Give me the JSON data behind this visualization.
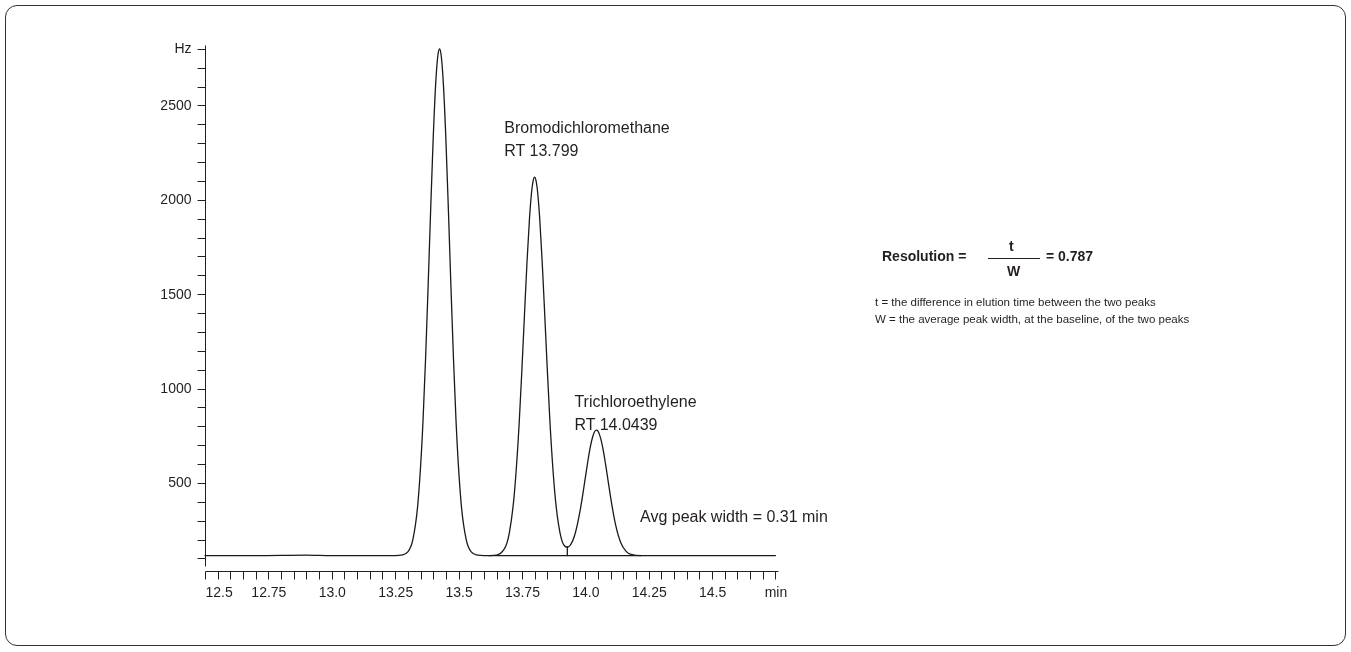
{
  "chart_data": {
    "type": "line",
    "series": [
      {
        "color": "#1a1a1a",
        "x": [
          12.5,
          12.7,
          12.9,
          13.0,
          13.2,
          13.25,
          13.28,
          13.3,
          13.32,
          13.34,
          13.36,
          13.37,
          13.38,
          13.39,
          13.4,
          13.41,
          13.415,
          13.42,
          13.425,
          13.43,
          13.435,
          13.44,
          13.45,
          13.46,
          13.47,
          13.48,
          13.49,
          13.51,
          13.53,
          13.55,
          13.57,
          13.6,
          13.65,
          13.68,
          13.7,
          13.72,
          13.74,
          13.75,
          13.76,
          13.77,
          13.78,
          13.79,
          13.795,
          13.8,
          13.805,
          13.81,
          13.82,
          13.83,
          13.84,
          13.85,
          13.86,
          13.88,
          13.9,
          13.92,
          13.93,
          13.94,
          13.96,
          13.98,
          14.0,
          14.01,
          14.02,
          14.03,
          14.044,
          14.05,
          14.06,
          14.07,
          14.08,
          14.09,
          14.1,
          14.12,
          14.14,
          14.16,
          14.18,
          14.22,
          14.5,
          14.75
        ],
        "values": [
          115,
          115,
          118,
          115,
          115,
          115,
          119,
          135,
          201,
          396,
          832,
          1159,
          1541,
          1946,
          2324,
          2618,
          2717,
          2779,
          2800,
          2779,
          2717,
          2618,
          2324,
          1946,
          1541,
          1159,
          832,
          396,
          201,
          135,
          119,
          115,
          118,
          149,
          233,
          442,
          837,
          1103,
          1390,
          1669,
          1905,
          2064,
          2106,
          2120,
          2106,
          2064,
          1905,
          1669,
          1390,
          1103,
          837,
          443,
          237,
          164,
          159,
          169,
          232,
          357,
          527,
          615,
          692,
          749,
          780,
          774,
          739,
          678,
          598,
          510,
          422,
          275,
          183,
          139,
          122,
          115,
          115,
          115
        ]
      },
      {
        "color": "#1a1a1a",
        "x": [
          13.62,
          14.22
        ],
        "values": [
          115,
          115
        ]
      },
      {
        "color": "#1a1a1a",
        "x": [
          13.929,
          13.929
        ],
        "values": [
          115,
          162
        ]
      }
    ],
    "xlim": [
      12.5,
      14.76
    ],
    "ylim": [
      60,
      2820
    ],
    "xticks": [
      12.5,
      {
        "value": 12.55,
        "label": null
      },
      {
        "value": 12.6,
        "label": null
      },
      {
        "value": 12.65,
        "label": null
      },
      {
        "value": 12.7,
        "label": null
      },
      12.75,
      {
        "value": 12.8,
        "label": null
      },
      {
        "value": 12.85,
        "label": null
      },
      {
        "value": 12.9,
        "label": null
      },
      {
        "value": 12.95,
        "label": null
      },
      {
        "value": 13,
        "label": "13.0"
      },
      {
        "value": 13.05,
        "label": null
      },
      {
        "value": 13.1,
        "label": null
      },
      {
        "value": 13.15,
        "label": null
      },
      {
        "value": 13.2,
        "label": null
      },
      13.25,
      {
        "value": 13.3,
        "label": null
      },
      {
        "value": 13.35,
        "label": null
      },
      {
        "value": 13.4,
        "label": null
      },
      {
        "value": 13.45,
        "label": null
      },
      13.5,
      {
        "value": 13.55,
        "label": null
      },
      {
        "value": 13.6,
        "label": null
      },
      {
        "value": 13.65,
        "label": null
      },
      {
        "value": 13.7,
        "label": null
      },
      13.75,
      {
        "value": 13.8,
        "label": null
      },
      {
        "value": 13.85,
        "label": null
      },
      {
        "value": 13.9,
        "label": null
      },
      {
        "value": 13.95,
        "label": null
      },
      {
        "value": 14,
        "label": "14.0"
      },
      {
        "value": 14.05,
        "label": null
      },
      {
        "value": 14.1,
        "label": null
      },
      {
        "value": 14.15,
        "label": null
      },
      {
        "value": 14.2,
        "label": null
      },
      14.25,
      {
        "value": 14.3,
        "label": null
      },
      {
        "value": 14.35,
        "label": null
      },
      {
        "value": 14.4,
        "label": null
      },
      {
        "value": 14.45,
        "label": null
      },
      14.5,
      {
        "value": 14.55,
        "label": null
      },
      {
        "value": 14.6,
        "label": null
      },
      {
        "value": 14.65,
        "label": null
      },
      {
        "value": 14.7,
        "label": null
      },
      {
        "value": 14.75,
        "label": "min"
      }
    ],
    "yticks": [
      {
        "value": 100,
        "label": null
      },
      {
        "value": 200,
        "label": null
      },
      {
        "value": 300,
        "label": null
      },
      {
        "value": 400,
        "label": null
      },
      500,
      {
        "value": 600,
        "label": null
      },
      {
        "value": 700,
        "label": null
      },
      {
        "value": 800,
        "label": null
      },
      {
        "value": 900,
        "label": null
      },
      1000,
      {
        "value": 1100,
        "label": null
      },
      {
        "value": 1200,
        "label": null
      },
      {
        "value": 1300,
        "label": null
      },
      {
        "value": 1400,
        "label": null
      },
      1500,
      {
        "value": 1600,
        "label": null
      },
      {
        "value": 1700,
        "label": null
      },
      {
        "value": 1800,
        "label": null
      },
      {
        "value": 1900,
        "label": null
      },
      2000,
      {
        "value": 2100,
        "label": null
      },
      {
        "value": 2200,
        "label": null
      },
      {
        "value": 2300,
        "label": null
      },
      {
        "value": 2400,
        "label": null
      },
      2500,
      {
        "value": 2600,
        "label": null
      },
      {
        "value": 2700,
        "label": null
      },
      {
        "value": 2800,
        "label": "Hz"
      }
    ],
    "grid": false,
    "line_style": "solid",
    "marker": "none",
    "annotations": [
      {
        "text": "Bromodichloromethane\nRT 13.799",
        "x": 13.799,
        "y": 2120
      },
      {
        "text": "Trichloroethylene\nRT 14.0439",
        "x": 14.0439,
        "y": 780
      },
      "Avg peak width = 0.31 min",
      "Resolution =",
      "t",
      "W",
      "= 0.787",
      "t = the difference in elution time between the two peaks",
      "W = the average peak width, at the baseline, of the two peaks"
    ]
  }
}
